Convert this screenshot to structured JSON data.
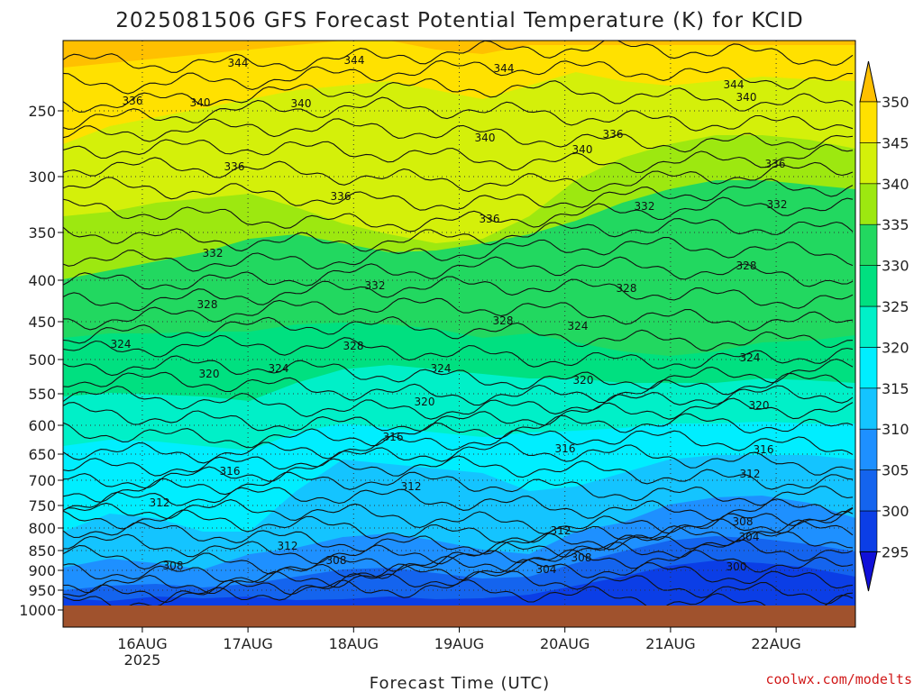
{
  "chart_data": {
    "type": "heatmap",
    "title": "2025081506 GFS Forecast Potential Temperature (K) for KCID",
    "xlabel": "Forecast Time (UTC)",
    "ylabel": "",
    "credit": "coolwx.com/modelts",
    "y_ticks": [
      250,
      300,
      350,
      400,
      450,
      500,
      550,
      600,
      650,
      700,
      750,
      800,
      850,
      900,
      950,
      1000
    ],
    "y_range_hpa": [
      200,
      1010
    ],
    "x_ticks": [
      {
        "label": "16AUG",
        "sub": "2025",
        "hour": 18
      },
      {
        "label": "17AUG",
        "sub": "",
        "hour": 42
      },
      {
        "label": "18AUG",
        "sub": "",
        "hour": 66
      },
      {
        "label": "19AUG",
        "sub": "",
        "hour": 90
      },
      {
        "label": "20AUG",
        "sub": "",
        "hour": 114
      },
      {
        "label": "21AUG",
        "sub": "",
        "hour": 138
      },
      {
        "label": "22AUG",
        "sub": "",
        "hour": 162
      }
    ],
    "x_range_hours": [
      0,
      180
    ],
    "legend": {
      "placement": "right",
      "levels": [
        295,
        300,
        305,
        310,
        315,
        320,
        325,
        330,
        335,
        340,
        345,
        350
      ],
      "colors": [
        "#1010d8",
        "#0b3ee6",
        "#1464ee",
        "#1e90ff",
        "#14c4ff",
        "#00eeff",
        "#00f0c8",
        "#00e080",
        "#22d860",
        "#9de810",
        "#d4f00a",
        "#ffe100",
        "#ffc000"
      ]
    },
    "contour_labels": [
      {
        "value": "344",
        "x": 264,
        "y": 70
      },
      {
        "value": "344",
        "x": 393,
        "y": 67
      },
      {
        "value": "344",
        "x": 559,
        "y": 76
      },
      {
        "value": "344",
        "x": 814,
        "y": 94
      },
      {
        "value": "340",
        "x": 828,
        "y": 108
      },
      {
        "value": "336",
        "x": 147,
        "y": 112
      },
      {
        "value": "340",
        "x": 222,
        "y": 114
      },
      {
        "value": "340",
        "x": 334,
        "y": 115
      },
      {
        "value": "340",
        "x": 538,
        "y": 153
      },
      {
        "value": "340",
        "x": 646,
        "y": 166
      },
      {
        "value": "336",
        "x": 680,
        "y": 149
      },
      {
        "value": "336",
        "x": 260,
        "y": 185
      },
      {
        "value": "336",
        "x": 860,
        "y": 182
      },
      {
        "value": "336",
        "x": 378,
        "y": 218
      },
      {
        "value": "332",
        "x": 715,
        "y": 229
      },
      {
        "value": "332",
        "x": 862,
        "y": 227
      },
      {
        "value": "336",
        "x": 543,
        "y": 243
      },
      {
        "value": "332",
        "x": 236,
        "y": 281
      },
      {
        "value": "328",
        "x": 828,
        "y": 295
      },
      {
        "value": "332",
        "x": 416,
        "y": 317
      },
      {
        "value": "328",
        "x": 695,
        "y": 320
      },
      {
        "value": "328",
        "x": 230,
        "y": 338
      },
      {
        "value": "328",
        "x": 558,
        "y": 356
      },
      {
        "value": "324",
        "x": 641,
        "y": 362
      },
      {
        "value": "324",
        "x": 134,
        "y": 382
      },
      {
        "value": "328",
        "x": 392,
        "y": 384
      },
      {
        "value": "324",
        "x": 832,
        "y": 397
      },
      {
        "value": "324",
        "x": 309,
        "y": 409
      },
      {
        "value": "324",
        "x": 489,
        "y": 409
      },
      {
        "value": "320",
        "x": 232,
        "y": 415
      },
      {
        "value": "320",
        "x": 647,
        "y": 422
      },
      {
        "value": "320",
        "x": 471,
        "y": 446
      },
      {
        "value": "320",
        "x": 842,
        "y": 450
      },
      {
        "value": "316",
        "x": 436,
        "y": 485
      },
      {
        "value": "316",
        "x": 627,
        "y": 498
      },
      {
        "value": "316",
        "x": 847,
        "y": 499
      },
      {
        "value": "316",
        "x": 255,
        "y": 523
      },
      {
        "value": "312",
        "x": 832,
        "y": 526
      },
      {
        "value": "312",
        "x": 456,
        "y": 540
      },
      {
        "value": "312",
        "x": 177,
        "y": 558
      },
      {
        "value": "308",
        "x": 824,
        "y": 579
      },
      {
        "value": "312",
        "x": 622,
        "y": 589
      },
      {
        "value": "304",
        "x": 831,
        "y": 596
      },
      {
        "value": "312",
        "x": 319,
        "y": 606
      },
      {
        "value": "308",
        "x": 373,
        "y": 622
      },
      {
        "value": "308",
        "x": 645,
        "y": 619
      },
      {
        "value": "300",
        "x": 817,
        "y": 629
      },
      {
        "value": "308",
        "x": 192,
        "y": 628
      },
      {
        "value": "304",
        "x": 606,
        "y": 632
      }
    ]
  }
}
